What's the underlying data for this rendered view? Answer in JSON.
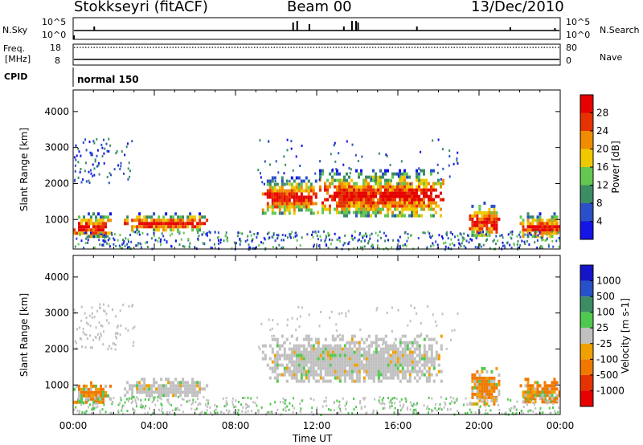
{
  "header": {
    "station": "Stokkseyri (fitACF)",
    "beam": "Beam 00",
    "date": "13/Dec/2010"
  },
  "sky_panel": {
    "left_label": "N.Sky",
    "right_label": "N.Search",
    "left_ticks": [
      "10^5",
      "10^0"
    ],
    "right_ticks": [
      "10^5",
      "10^0"
    ]
  },
  "freq_panel": {
    "left_label_1": "Freq.",
    "left_label_2": "[MHz]",
    "right_label": "Nave",
    "left_ticks": [
      "18",
      "8"
    ],
    "right_ticks": [
      "80",
      "0"
    ]
  },
  "cpid": {
    "label": "CPID",
    "mode": "normal 150"
  },
  "x_axis": {
    "label": "Time UT",
    "ticks": [
      "00:00",
      "04:00",
      "08:00",
      "12:00",
      "16:00",
      "20:00",
      "00:00"
    ]
  },
  "chart_data": [
    {
      "type": "heatmap",
      "quantity": "Power",
      "ylabel": "Slant Range [km]",
      "xlabel": "Time UT",
      "x_range_hours": [
        0,
        24
      ],
      "ylim": [
        180,
        4600
      ],
      "y_ticks": [
        1000,
        2000,
        3000,
        4000
      ],
      "colorbar": {
        "label": "Power [dB]",
        "ticks": [
          "4",
          "8",
          "12",
          "16",
          "20",
          "24",
          "28"
        ],
        "colors": [
          "#1414e6",
          "#2a4fc8",
          "#3c8c64",
          "#64c850",
          "#f0c800",
          "#f08c00",
          "#e63200",
          "#e60000"
        ]
      },
      "echo_regions": [
        {
          "t": [
            0.0,
            1.8
          ],
          "r": [
            500,
            1200
          ],
          "power": "high"
        },
        {
          "t": [
            2.5,
            6.6
          ],
          "r": [
            700,
            1200
          ],
          "power": "high"
        },
        {
          "t": [
            9.3,
            12.0
          ],
          "r": [
            1200,
            2200
          ],
          "power": "high"
        },
        {
          "t": [
            12.0,
            18.2
          ],
          "r": [
            1100,
            2400
          ],
          "power": "high"
        },
        {
          "t": [
            19.5,
            21.0
          ],
          "r": [
            500,
            1500
          ],
          "power": "high"
        },
        {
          "t": [
            22.0,
            24.0
          ],
          "r": [
            500,
            1200
          ],
          "power": "high"
        }
      ]
    },
    {
      "type": "heatmap",
      "quantity": "Velocity",
      "ylabel": "Slant Range [km]",
      "xlabel": "Time UT",
      "x_range_hours": [
        0,
        24
      ],
      "ylim": [
        180,
        4600
      ],
      "y_ticks": [
        1000,
        2000,
        3000,
        4000
      ],
      "colorbar": {
        "label": "Velocity [m s-1]",
        "ticks": [
          "1000",
          "500",
          "100",
          "25",
          "-25",
          "-100",
          "-500",
          "-1000"
        ],
        "colors": [
          "#1414c8",
          "#2850c8",
          "#3c8c64",
          "#50c850",
          "#c0c0c0",
          "#f0a000",
          "#f07800",
          "#e63200",
          "#e60000"
        ]
      },
      "echo_regions": [
        {
          "t": [
            0.0,
            1.8
          ],
          "r": [
            500,
            1100
          ],
          "velocity": "negative"
        },
        {
          "t": [
            2.5,
            6.6
          ],
          "r": [
            700,
            1200
          ],
          "velocity": "near zero"
        },
        {
          "t": [
            9.3,
            18.2
          ],
          "r": [
            1100,
            2400
          ],
          "velocity": "near zero"
        },
        {
          "t": [
            19.5,
            21.0
          ],
          "r": [
            500,
            1500
          ],
          "velocity": "negative"
        },
        {
          "t": [
            22.0,
            24.0
          ],
          "r": [
            500,
            1200
          ],
          "velocity": "negative"
        }
      ]
    }
  ]
}
